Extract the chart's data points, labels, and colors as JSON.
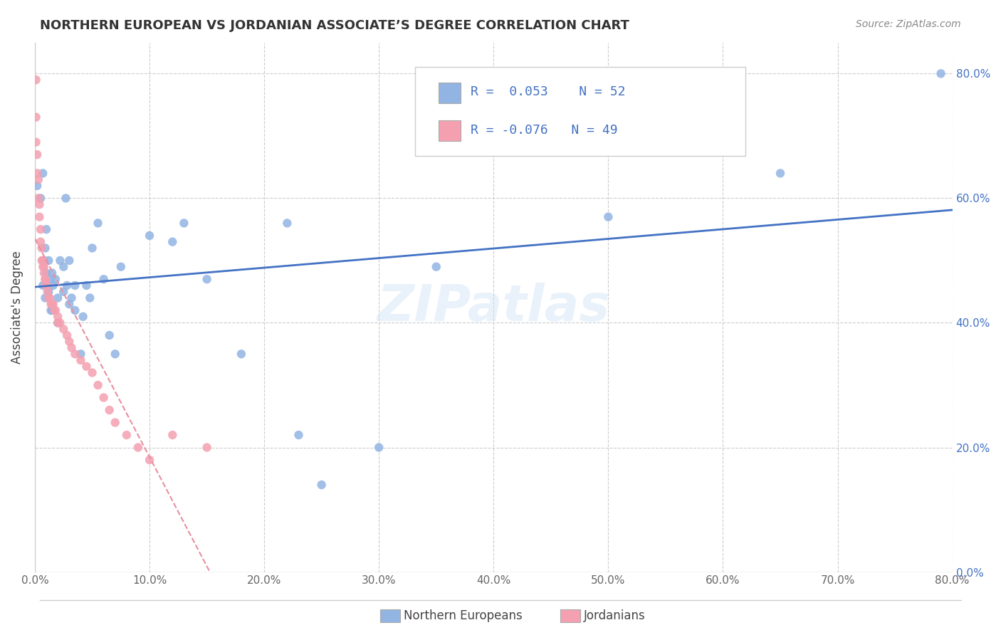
{
  "title": "NORTHERN EUROPEAN VS JORDANIAN ASSOCIATE’S DEGREE CORRELATION CHART",
  "source": "Source: ZipAtlas.com",
  "ylabel": "Associate's Degree",
  "xlim": [
    0.0,
    0.8
  ],
  "ylim": [
    0.0,
    0.85
  ],
  "background_color": "#ffffff",
  "watermark": "ZIPatlas",
  "blue_color": "#92b4e3",
  "pink_color": "#f4a0b0",
  "blue_line_color": "#4472c4",
  "pink_line_color": "#e88fa0",
  "ne_x": [
    0.002,
    0.005,
    0.007,
    0.007,
    0.008,
    0.009,
    0.009,
    0.01,
    0.01,
    0.012,
    0.012,
    0.013,
    0.014,
    0.015,
    0.015,
    0.016,
    0.018,
    0.02,
    0.02,
    0.022,
    0.025,
    0.025,
    0.027,
    0.028,
    0.03,
    0.03,
    0.032,
    0.035,
    0.035,
    0.04,
    0.042,
    0.045,
    0.048,
    0.05,
    0.055,
    0.06,
    0.065,
    0.07,
    0.075,
    0.1,
    0.12,
    0.13,
    0.15,
    0.18,
    0.22,
    0.23,
    0.25,
    0.3,
    0.35,
    0.5,
    0.65,
    0.79
  ],
  "ne_y": [
    0.62,
    0.6,
    0.64,
    0.46,
    0.5,
    0.52,
    0.44,
    0.48,
    0.55,
    0.45,
    0.5,
    0.47,
    0.42,
    0.42,
    0.48,
    0.46,
    0.47,
    0.44,
    0.4,
    0.5,
    0.49,
    0.45,
    0.6,
    0.46,
    0.43,
    0.5,
    0.44,
    0.46,
    0.42,
    0.35,
    0.41,
    0.46,
    0.44,
    0.52,
    0.56,
    0.47,
    0.38,
    0.35,
    0.49,
    0.54,
    0.53,
    0.56,
    0.47,
    0.35,
    0.56,
    0.22,
    0.14,
    0.2,
    0.49,
    0.57,
    0.64,
    0.8
  ],
  "jord_x": [
    0.001,
    0.001,
    0.001,
    0.002,
    0.002,
    0.003,
    0.003,
    0.004,
    0.004,
    0.005,
    0.005,
    0.006,
    0.006,
    0.007,
    0.007,
    0.008,
    0.008,
    0.009,
    0.009,
    0.01,
    0.01,
    0.011,
    0.012,
    0.013,
    0.014,
    0.015,
    0.016,
    0.017,
    0.018,
    0.02,
    0.02,
    0.022,
    0.025,
    0.028,
    0.03,
    0.032,
    0.035,
    0.04,
    0.045,
    0.05,
    0.055,
    0.06,
    0.065,
    0.07,
    0.08,
    0.09,
    0.1,
    0.12,
    0.15
  ],
  "jord_y": [
    0.79,
    0.73,
    0.69,
    0.67,
    0.64,
    0.63,
    0.6,
    0.59,
    0.57,
    0.55,
    0.53,
    0.52,
    0.5,
    0.5,
    0.49,
    0.49,
    0.48,
    0.47,
    0.47,
    0.46,
    0.46,
    0.45,
    0.44,
    0.44,
    0.43,
    0.43,
    0.43,
    0.42,
    0.42,
    0.41,
    0.4,
    0.4,
    0.39,
    0.38,
    0.37,
    0.36,
    0.35,
    0.34,
    0.33,
    0.32,
    0.3,
    0.28,
    0.26,
    0.24,
    0.22,
    0.2,
    0.18,
    0.22,
    0.2
  ]
}
